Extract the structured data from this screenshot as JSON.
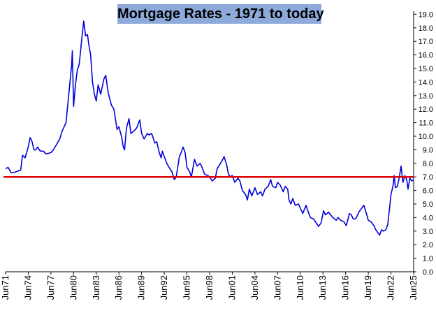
{
  "chart_data": {
    "type": "line",
    "title": "Mortgage Rates - 1971 to today",
    "xlabel": "",
    "ylabel": "",
    "ylim": [
      0,
      19
    ],
    "y_ticks": [
      "0.0",
      "1.0",
      "2.0",
      "3.0",
      "4.0",
      "5.0",
      "6.0",
      "7.0",
      "8.0",
      "9.0",
      "10.0",
      "11.0",
      "12.0",
      "13.0",
      "14.0",
      "15.0",
      "16.0",
      "17.0",
      "18.0",
      "19.0"
    ],
    "x_tick_labels": [
      "Jun71",
      "Jun74",
      "Jun77",
      "Jun80",
      "Jun83",
      "Jun86",
      "Jun89",
      "Jun92",
      "Jun95",
      "Jun98",
      "Jun01",
      "Jun04",
      "Jun07",
      "Jun10",
      "Jun13",
      "Jun16",
      "Jun19",
      "Jun22",
      "Jun25"
    ],
    "x_range": [
      "1971-06",
      "2025-06"
    ],
    "grid": false,
    "legend": "none",
    "reference_line": {
      "value": 7.0,
      "color": "#e00000"
    },
    "series": [
      {
        "color": "#0000dd",
        "points": [
          [
            "1971-06",
            7.6
          ],
          [
            "1971-10",
            7.7
          ],
          [
            "1972-03",
            7.3
          ],
          [
            "1972-09",
            7.35
          ],
          [
            "1973-03",
            7.45
          ],
          [
            "1973-06",
            7.5
          ],
          [
            "1973-09",
            8.6
          ],
          [
            "1974-01",
            8.4
          ],
          [
            "1974-06",
            9.2
          ],
          [
            "1974-09",
            9.9
          ],
          [
            "1974-12",
            9.6
          ],
          [
            "1975-03",
            9.0
          ],
          [
            "1975-06",
            9.0
          ],
          [
            "1975-09",
            9.2
          ],
          [
            "1976-01",
            8.9
          ],
          [
            "1976-06",
            8.9
          ],
          [
            "1976-10",
            8.7
          ],
          [
            "1977-03",
            8.75
          ],
          [
            "1977-06",
            8.8
          ],
          [
            "1977-10",
            9.0
          ],
          [
            "1978-03",
            9.4
          ],
          [
            "1978-08",
            9.8
          ],
          [
            "1978-12",
            10.4
          ],
          [
            "1979-06",
            11.0
          ],
          [
            "1979-10",
            12.9
          ],
          [
            "1980-03",
            15.3
          ],
          [
            "1980-04",
            16.3
          ],
          [
            "1980-06",
            12.2
          ],
          [
            "1980-09",
            13.8
          ],
          [
            "1980-12",
            14.9
          ],
          [
            "1981-03",
            15.3
          ],
          [
            "1981-06",
            16.7
          ],
          [
            "1981-10",
            18.5
          ],
          [
            "1982-01",
            17.4
          ],
          [
            "1982-04",
            17.5
          ],
          [
            "1982-06",
            16.8
          ],
          [
            "1982-09",
            16.0
          ],
          [
            "1982-12",
            14.0
          ],
          [
            "1983-03",
            13.1
          ],
          [
            "1983-06",
            12.6
          ],
          [
            "1983-09",
            13.8
          ],
          [
            "1984-01",
            13.1
          ],
          [
            "1984-06",
            14.2
          ],
          [
            "1984-09",
            14.5
          ],
          [
            "1985-01",
            13.2
          ],
          [
            "1985-06",
            12.3
          ],
          [
            "1985-10",
            12.0
          ],
          [
            "1986-03",
            10.5
          ],
          [
            "1986-06",
            10.7
          ],
          [
            "1986-10",
            10.0
          ],
          [
            "1987-01",
            9.2
          ],
          [
            "1987-03",
            9.0
          ],
          [
            "1987-06",
            10.6
          ],
          [
            "1987-10",
            11.3
          ],
          [
            "1988-01",
            10.2
          ],
          [
            "1988-06",
            10.4
          ],
          [
            "1988-10",
            10.6
          ],
          [
            "1989-03",
            11.2
          ],
          [
            "1989-06",
            10.2
          ],
          [
            "1989-10",
            9.8
          ],
          [
            "1990-03",
            10.2
          ],
          [
            "1990-06",
            10.1
          ],
          [
            "1990-10",
            10.2
          ],
          [
            "1991-03",
            9.5
          ],
          [
            "1991-06",
            9.6
          ],
          [
            "1991-10",
            8.8
          ],
          [
            "1992-01",
            8.4
          ],
          [
            "1992-03",
            8.9
          ],
          [
            "1992-06",
            8.5
          ],
          [
            "1992-10",
            8.0
          ],
          [
            "1993-03",
            7.6
          ],
          [
            "1993-06",
            7.4
          ],
          [
            "1993-10",
            6.8
          ],
          [
            "1994-01",
            7.0
          ],
          [
            "1994-06",
            8.5
          ],
          [
            "1994-09",
            8.8
          ],
          [
            "1994-12",
            9.2
          ],
          [
            "1995-03",
            8.8
          ],
          [
            "1995-06",
            7.7
          ],
          [
            "1995-10",
            7.4
          ],
          [
            "1996-01",
            7.0
          ],
          [
            "1996-06",
            8.3
          ],
          [
            "1996-10",
            7.8
          ],
          [
            "1997-03",
            8.0
          ],
          [
            "1997-06",
            7.7
          ],
          [
            "1997-10",
            7.2
          ],
          [
            "1998-03",
            7.1
          ],
          [
            "1998-06",
            7.0
          ],
          [
            "1998-10",
            6.7
          ],
          [
            "1999-03",
            6.9
          ],
          [
            "1999-06",
            7.6
          ],
          [
            "1999-10",
            7.9
          ],
          [
            "2000-03",
            8.3
          ],
          [
            "2000-05",
            8.5
          ],
          [
            "2000-09",
            7.9
          ],
          [
            "2000-12",
            7.2
          ],
          [
            "2001-03",
            7.0
          ],
          [
            "2001-06",
            7.1
          ],
          [
            "2001-10",
            6.6
          ],
          [
            "2002-03",
            6.9
          ],
          [
            "2002-06",
            6.7
          ],
          [
            "2002-10",
            6.0
          ],
          [
            "2003-03",
            5.7
          ],
          [
            "2003-06",
            5.3
          ],
          [
            "2003-09",
            6.1
          ],
          [
            "2004-01",
            5.6
          ],
          [
            "2004-06",
            6.2
          ],
          [
            "2004-10",
            5.7
          ],
          [
            "2005-03",
            5.9
          ],
          [
            "2005-06",
            5.6
          ],
          [
            "2005-10",
            6.1
          ],
          [
            "2006-03",
            6.3
          ],
          [
            "2006-07",
            6.8
          ],
          [
            "2006-10",
            6.3
          ],
          [
            "2007-03",
            6.2
          ],
          [
            "2007-06",
            6.6
          ],
          [
            "2007-10",
            6.4
          ],
          [
            "2008-03",
            5.9
          ],
          [
            "2008-06",
            6.3
          ],
          [
            "2008-10",
            6.1
          ],
          [
            "2008-12",
            5.3
          ],
          [
            "2009-03",
            5.0
          ],
          [
            "2009-06",
            5.4
          ],
          [
            "2009-10",
            4.9
          ],
          [
            "2010-03",
            5.0
          ],
          [
            "2010-06",
            4.7
          ],
          [
            "2010-10",
            4.3
          ],
          [
            "2011-03",
            4.9
          ],
          [
            "2011-06",
            4.5
          ],
          [
            "2011-10",
            4.0
          ],
          [
            "2012-03",
            3.9
          ],
          [
            "2012-06",
            3.7
          ],
          [
            "2012-11",
            3.35
          ],
          [
            "2013-03",
            3.6
          ],
          [
            "2013-07",
            4.5
          ],
          [
            "2013-10",
            4.2
          ],
          [
            "2014-03",
            4.4
          ],
          [
            "2014-06",
            4.2
          ],
          [
            "2014-10",
            4.0
          ],
          [
            "2015-03",
            3.8
          ],
          [
            "2015-06",
            4.0
          ],
          [
            "2015-10",
            3.8
          ],
          [
            "2016-03",
            3.7
          ],
          [
            "2016-07",
            3.4
          ],
          [
            "2016-12",
            4.3
          ],
          [
            "2017-03",
            4.2
          ],
          [
            "2017-06",
            3.9
          ],
          [
            "2017-10",
            3.9
          ],
          [
            "2018-03",
            4.4
          ],
          [
            "2018-06",
            4.6
          ],
          [
            "2018-11",
            4.9
          ],
          [
            "2019-03",
            4.3
          ],
          [
            "2019-06",
            3.8
          ],
          [
            "2019-10",
            3.7
          ],
          [
            "2020-03",
            3.4
          ],
          [
            "2020-06",
            3.1
          ],
          [
            "2020-12",
            2.7
          ],
          [
            "2021-03",
            3.1
          ],
          [
            "2021-06",
            3.0
          ],
          [
            "2021-10",
            3.1
          ],
          [
            "2022-01",
            3.5
          ],
          [
            "2022-03",
            4.4
          ],
          [
            "2022-06",
            5.7
          ],
          [
            "2022-09",
            6.3
          ],
          [
            "2022-11",
            7.1
          ],
          [
            "2023-01",
            6.2
          ],
          [
            "2023-04",
            6.3
          ],
          [
            "2023-07",
            6.9
          ],
          [
            "2023-10",
            7.8
          ],
          [
            "2024-01",
            6.6
          ],
          [
            "2024-04",
            7.1
          ],
          [
            "2024-07",
            6.8
          ],
          [
            "2024-09",
            6.1
          ],
          [
            "2024-12",
            6.9
          ],
          [
            "2025-03",
            6.7
          ],
          [
            "2025-06",
            6.8
          ]
        ]
      }
    ]
  }
}
